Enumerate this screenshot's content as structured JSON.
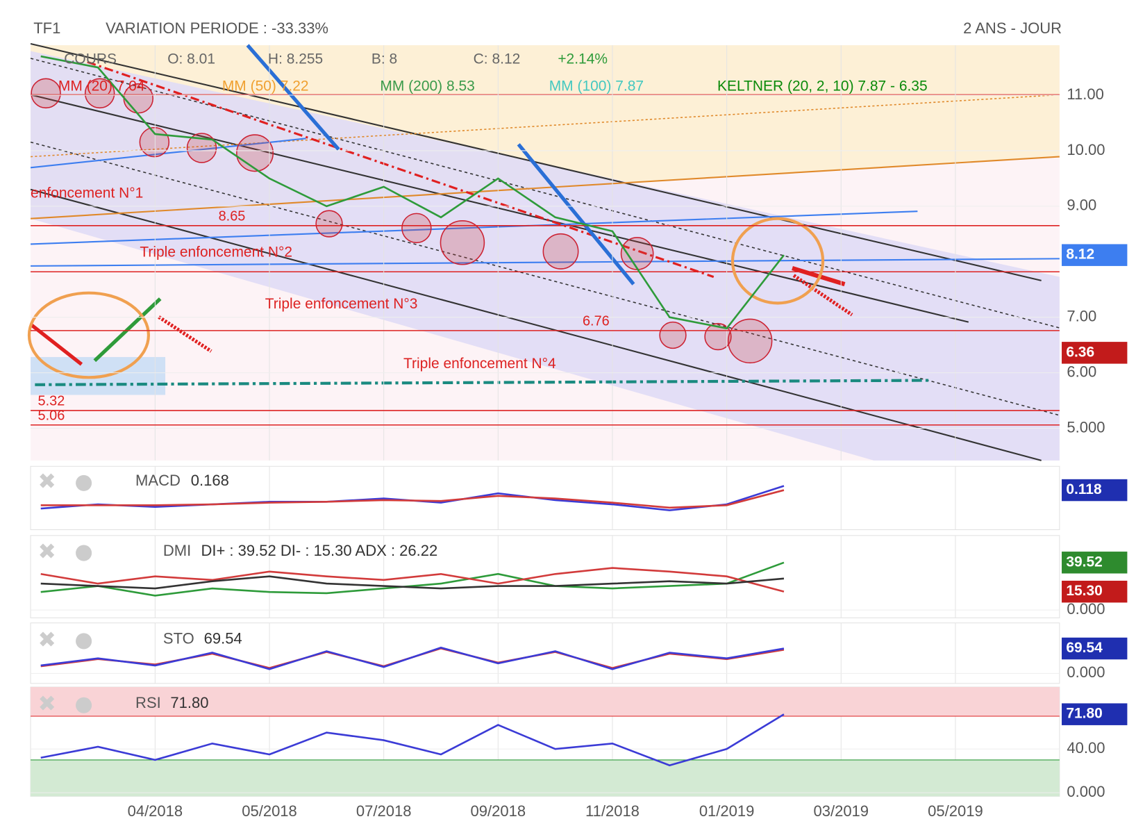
{
  "chart_data": [
    {
      "type": "line",
      "symbol": "TF1",
      "title": "VARIATION PERIODE : -33.33%",
      "period": "2 ANS - JOUR",
      "legend_texts": [
        "COURS",
        "O: 8.01",
        "H: 8.255",
        "B: 8",
        "C: 8.12",
        "+2.14%",
        "MM (20) 7.04",
        "MM (50) 7.22",
        "MM (200) 8.53",
        "MM (100) 7.87",
        "KELTNER (20, 2, 10) 7.87 - 6.35"
      ],
      "annotations": [
        "enfoncement N°1",
        "Triple enfoncement N°2",
        "Triple enfoncement N°3",
        "Triple enfoncement N°4"
      ],
      "levels": [
        8.65,
        6.76,
        5.32,
        5.06
      ],
      "categories": [
        null,
        null,
        "04/2018",
        null,
        "05/2018",
        null,
        "07/2018",
        null,
        "09/2018",
        null,
        "11/2018",
        null,
        "01/2019",
        null,
        "03/2019",
        null,
        "05/2019",
        null
      ],
      "series": [
        {
          "name": "COURS",
          "color": "#2e9b3a",
          "values": [
            11.7,
            11.5,
            10.3,
            10.2,
            9.5,
            9.0,
            9.35,
            8.8,
            9.5,
            8.8,
            8.55,
            7.0,
            6.8,
            8.12,
            null,
            null,
            null,
            null
          ]
        }
      ],
      "ylim": [
        4.42,
        11.9
      ],
      "yticks": [
        {
          "value": 11,
          "label": "11.00"
        },
        {
          "value": 10,
          "label": "10.00"
        },
        {
          "value": 9,
          "label": "9.00"
        },
        {
          "value": 7,
          "label": "7.00"
        },
        {
          "value": 6,
          "label": "6.00"
        },
        {
          "value": 5,
          "label": "5.000"
        }
      ],
      "tags": [
        {
          "value": 8.12,
          "color": "#3d7ef0"
        },
        {
          "value": 6.36,
          "color": "#c21b1b"
        }
      ],
      "grid": true
    },
    {
      "type": "line",
      "name": "MACD",
      "label": "0.168",
      "ylim": [
        -0.35,
        0.4
      ],
      "yticks": [],
      "series": [
        {
          "name": "MACD",
          "color": "#3b3bd6",
          "values": [
            -0.1,
            -0.05,
            -0.08,
            -0.05,
            -0.02,
            -0.02,
            0.02,
            -0.03,
            0.08,
            0.0,
            -0.05,
            -0.12,
            -0.05,
            0.168
          ]
        },
        {
          "name": "Signal",
          "color": "#d23b3b",
          "values": [
            -0.06,
            -0.06,
            -0.06,
            -0.05,
            -0.03,
            -0.02,
            0.0,
            -0.01,
            0.05,
            0.02,
            -0.03,
            -0.09,
            -0.06,
            0.118
          ]
        }
      ],
      "tags": [
        {
          "value": 0.118,
          "color": "#1f2fb0"
        }
      ],
      "grid": true
    },
    {
      "type": "line",
      "name": "DMI",
      "label": "DI+ : 39.52 DI- : 15.30 ADX : 26.22",
      "ylim": [
        -6.5,
        62
      ],
      "yticks": [
        {
          "value": 0,
          "label": "0.000"
        }
      ],
      "series": [
        {
          "name": "DI+",
          "color": "#2e9b3a",
          "values": [
            15,
            20,
            12,
            18,
            15,
            14,
            18,
            22,
            30,
            20,
            18,
            20,
            22,
            39.52
          ]
        },
        {
          "name": "DI-",
          "color": "#d23b3b",
          "values": [
            30,
            22,
            28,
            25,
            32,
            28,
            25,
            30,
            22,
            30,
            35,
            32,
            28,
            15.3
          ]
        },
        {
          "name": "ADX",
          "color": "#333333",
          "values": [
            22,
            20,
            18,
            24,
            28,
            22,
            20,
            18,
            20,
            20,
            22,
            24,
            22,
            26.22
          ]
        }
      ],
      "tags": [
        {
          "value": 39.52,
          "color": "#2e8b2e"
        },
        {
          "value": 15.3,
          "label": "15.30",
          "color": "#c21b1b"
        }
      ],
      "grid": true
    },
    {
      "type": "line",
      "name": "STO",
      "label": "69.54",
      "ylim": [
        -28,
        141
      ],
      "yticks": [
        {
          "value": 0,
          "label": "0.000"
        }
      ],
      "series": [
        {
          "name": "%D",
          "color": "#d23b3b",
          "values": [
            20,
            40,
            25,
            55,
            15,
            60,
            20,
            70,
            30,
            60,
            15,
            55,
            40,
            66
          ]
        },
        {
          "name": "%K",
          "color": "#3b3bd6",
          "values": [
            22,
            42,
            22,
            58,
            12,
            62,
            18,
            72,
            28,
            62,
            12,
            58,
            42,
            69.54
          ]
        }
      ],
      "tags": [
        {
          "value": 69.54,
          "color": "#1f2fb0"
        }
      ],
      "grid": true
    },
    {
      "type": "line",
      "name": "RSI",
      "label": "71.80",
      "ylim": [
        -3.3,
        96.7
      ],
      "yticks": [
        {
          "value": 40,
          "label": "40.00"
        },
        {
          "value": 0,
          "label": "0.000"
        }
      ],
      "bands": [
        30,
        70
      ],
      "series": [
        {
          "name": "RSI",
          "color": "#3b3bd6",
          "values": [
            32,
            42,
            30,
            45,
            35,
            55,
            48,
            35,
            62,
            40,
            45,
            25,
            40,
            71.8
          ]
        }
      ],
      "tags": [
        {
          "value": 71.8,
          "label": "71.80",
          "color": "#1f2fb0"
        }
      ],
      "grid": true
    }
  ]
}
